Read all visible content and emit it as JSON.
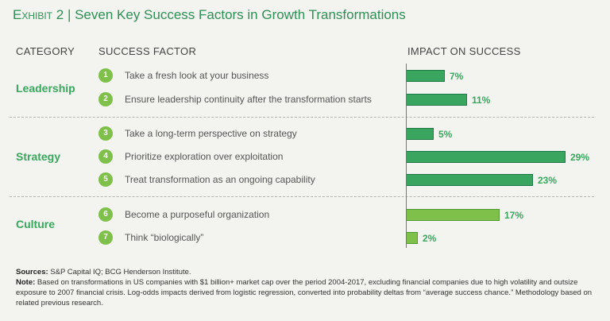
{
  "title": {
    "exhibit": "Exhibit 2",
    "separator": "|",
    "text": "Seven Key Success Factors in Growth Transformations"
  },
  "headers": {
    "category": "CATEGORY",
    "factor": "SUCCESS FACTOR",
    "impact": "IMPACT ON SUCCESS"
  },
  "categories": [
    "Leadership",
    "Strategy",
    "Culture"
  ],
  "chart_data": {
    "type": "bar",
    "orientation": "horizontal",
    "title": "Seven Key Success Factors in Growth Transformations",
    "categories": [
      "Take a fresh look at your business",
      "Ensure leadership continuity after the transformation starts",
      "Take a long-term perspective on strategy",
      "Prioritize exploration over exploitation",
      "Treat transformation as an ongoing capability",
      "Become a purposeful organization",
      "Think “biologically”"
    ],
    "numbers": [
      "1",
      "2",
      "3",
      "4",
      "5",
      "6",
      "7"
    ],
    "groups": [
      "Leadership",
      "Leadership",
      "Strategy",
      "Strategy",
      "Strategy",
      "Culture",
      "Culture"
    ],
    "values": [
      7,
      11,
      5,
      29,
      23,
      17,
      2
    ],
    "value_labels": [
      "7%",
      "11%",
      "5%",
      "29%",
      "23%",
      "17%",
      "2%"
    ],
    "xlim": [
      0,
      30
    ],
    "unit": "%",
    "colors": {
      "Leadership": "#3aa55e",
      "Strategy": "#3aa55e",
      "Culture": "#7fc04a",
      "label": "#38a85e"
    }
  },
  "footer": {
    "sources_label": "Sources:",
    "sources_text": "S&P Capital IQ; BCG Henderson Institute.",
    "note_label": "Note:",
    "note_text": "Based on transformations in US companies with $1 billion+ market cap over the period 2004-2017, excluding financial companies due to high volatility and outsize exposure to 2007 financial crisis. Log-odds impacts derived from logistic regression, converted into probability deltas from “average success chance.” Methodology based on related previous research."
  }
}
